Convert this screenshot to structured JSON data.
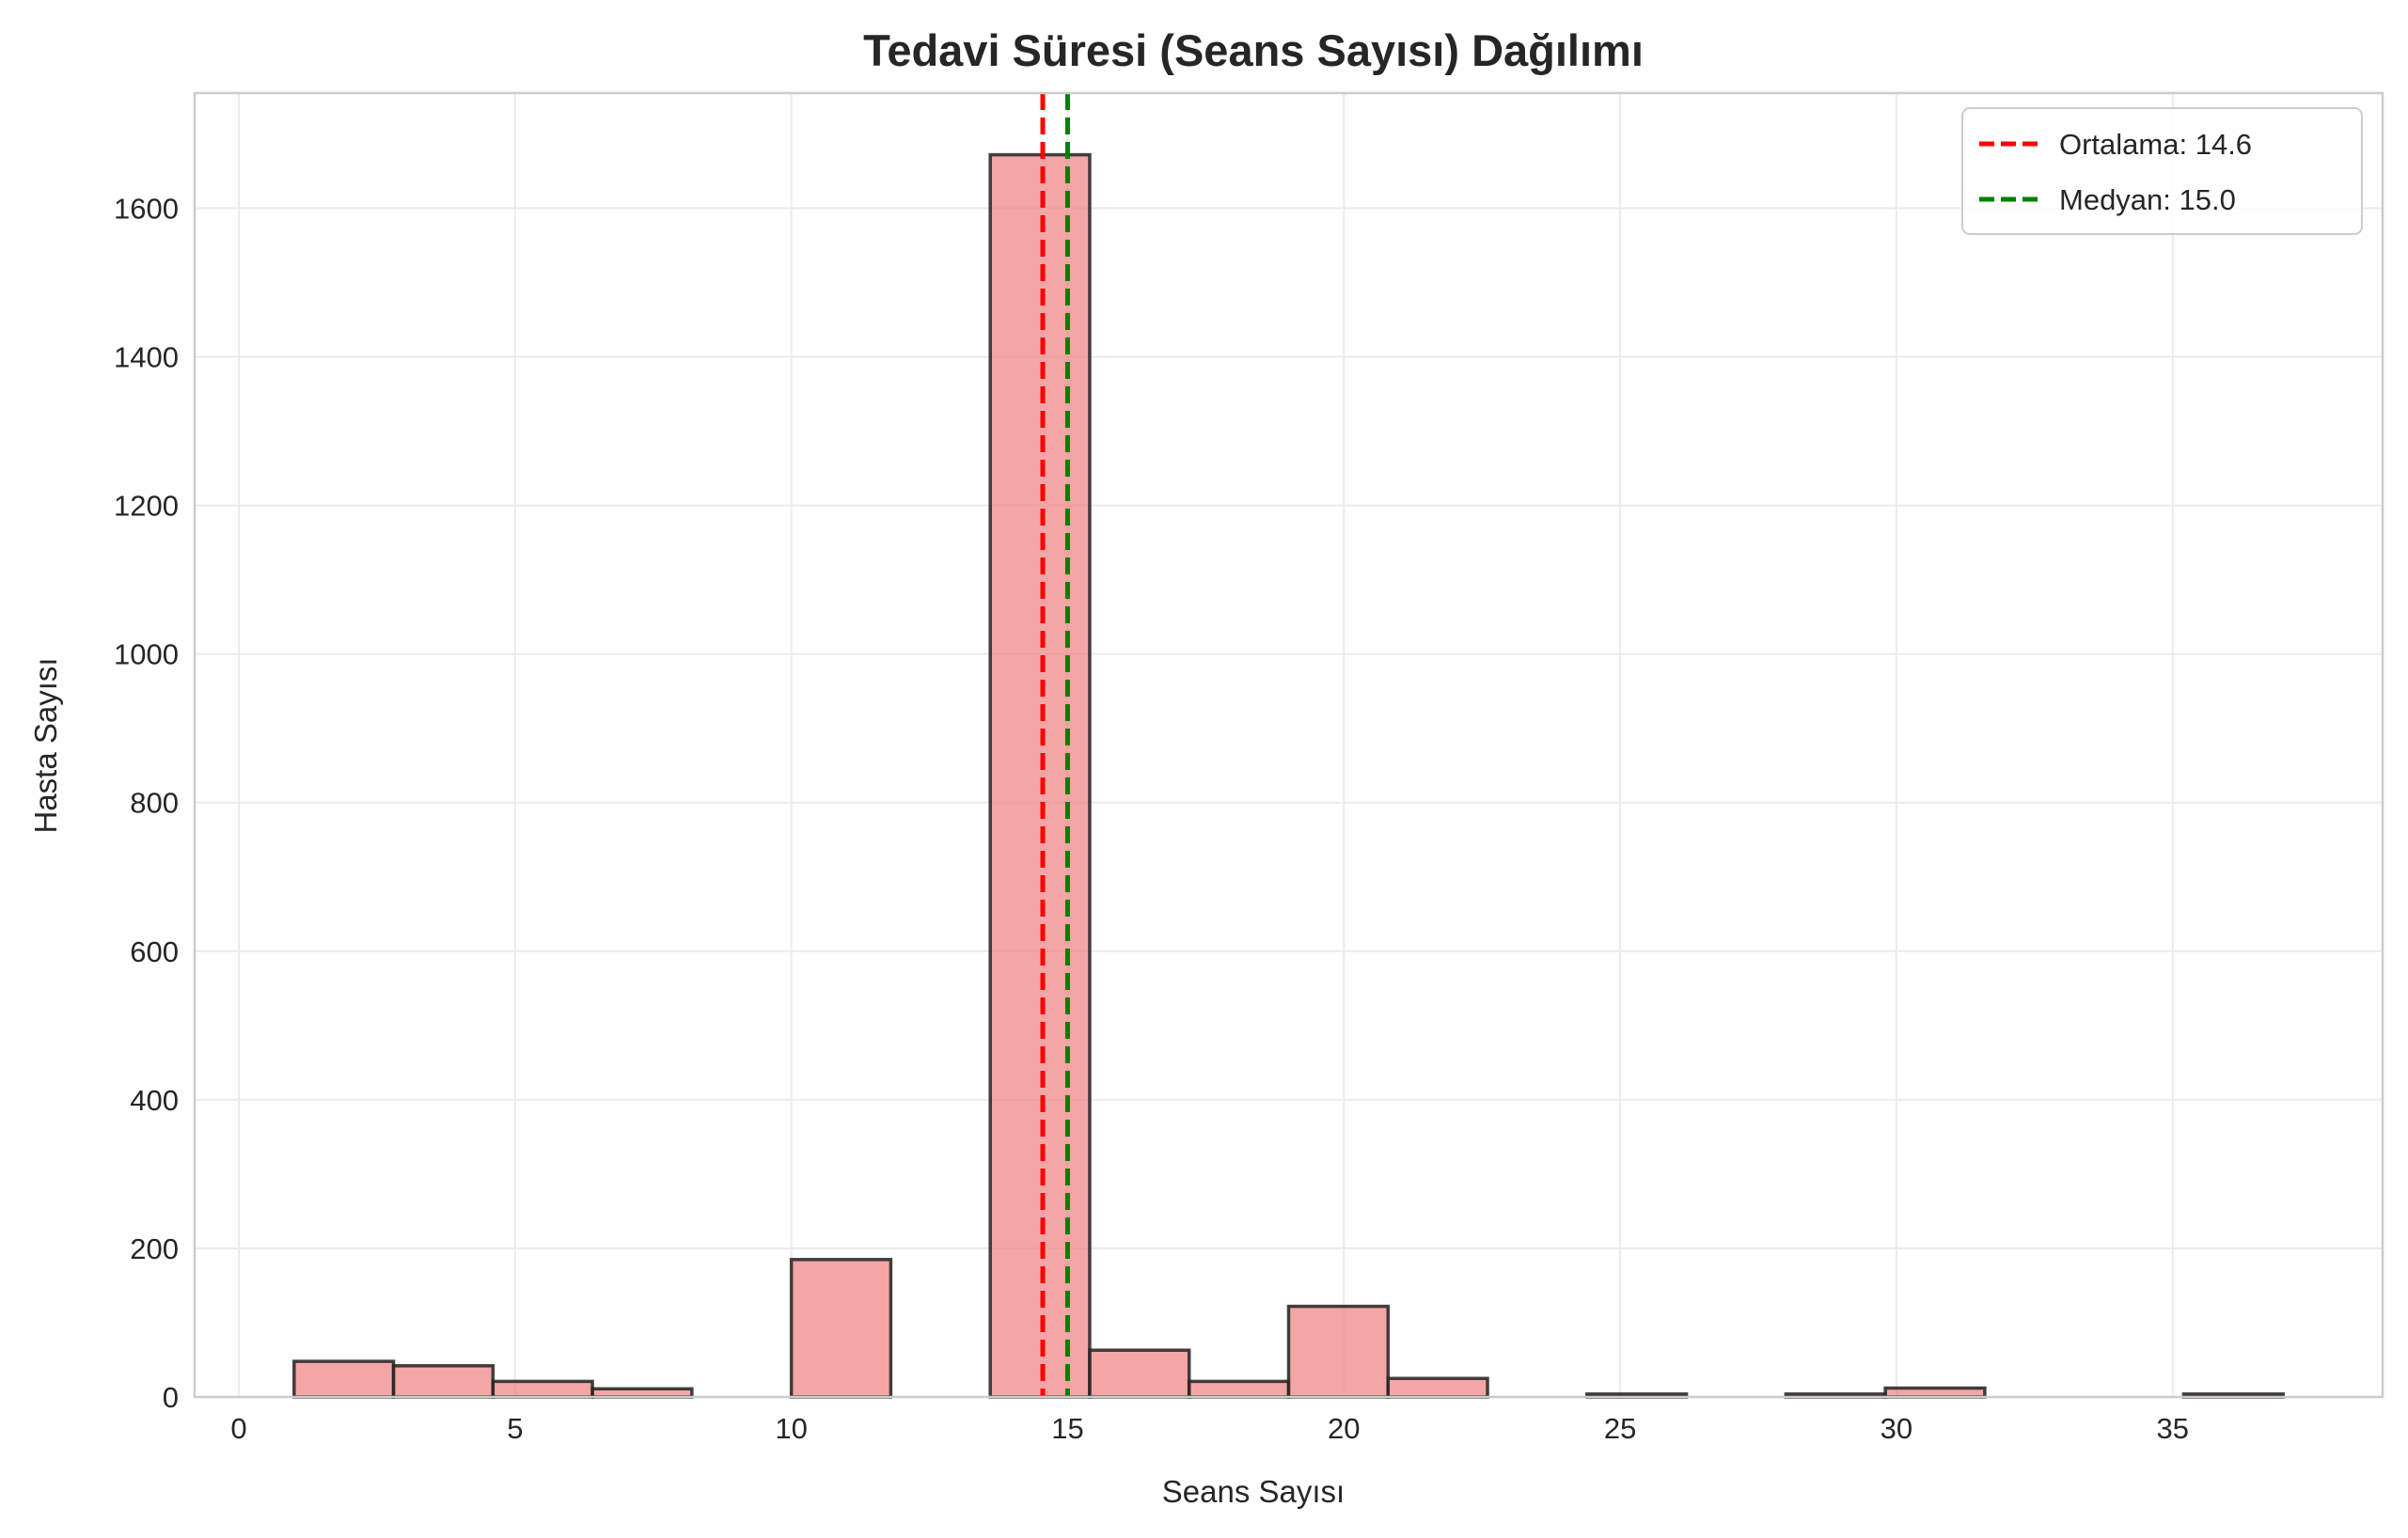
{
  "chart_data": {
    "type": "bar",
    "title": "Tedavi Süresi (Seans Sayısı) Dağılımı",
    "xlabel": "Seans Sayısı",
    "ylabel": "Hasta Sayısı",
    "xlim": [
      -0.8,
      38.8
    ],
    "ylim": [
      0,
      1755
    ],
    "xticks": [
      0,
      5,
      10,
      15,
      20,
      25,
      30,
      35
    ],
    "yticks": [
      0,
      200,
      400,
      600,
      800,
      1000,
      1200,
      1400,
      1600
    ],
    "grid": true,
    "bar_color": "#f08080",
    "edge_color": "#222222",
    "bins": [
      {
        "x0": 1.0,
        "x1": 2.8,
        "value": 48
      },
      {
        "x0": 2.8,
        "x1": 4.6,
        "value": 42
      },
      {
        "x0": 4.6,
        "x1": 6.4,
        "value": 21
      },
      {
        "x0": 6.4,
        "x1": 8.2,
        "value": 11
      },
      {
        "x0": 8.2,
        "x1": 10.0,
        "value": 0
      },
      {
        "x0": 10.0,
        "x1": 11.8,
        "value": 185
      },
      {
        "x0": 11.8,
        "x1": 13.6,
        "value": 0
      },
      {
        "x0": 13.6,
        "x1": 15.4,
        "value": 1672
      },
      {
        "x0": 15.4,
        "x1": 17.2,
        "value": 63
      },
      {
        "x0": 17.2,
        "x1": 19.0,
        "value": 21
      },
      {
        "x0": 19.0,
        "x1": 20.8,
        "value": 122
      },
      {
        "x0": 20.8,
        "x1": 22.6,
        "value": 25
      },
      {
        "x0": 22.6,
        "x1": 24.4,
        "value": 0
      },
      {
        "x0": 24.4,
        "x1": 26.2,
        "value": 4
      },
      {
        "x0": 26.2,
        "x1": 28.0,
        "value": 0
      },
      {
        "x0": 28.0,
        "x1": 29.8,
        "value": 4
      },
      {
        "x0": 29.8,
        "x1": 31.6,
        "value": 12
      },
      {
        "x0": 31.6,
        "x1": 33.4,
        "value": 0
      },
      {
        "x0": 33.4,
        "x1": 35.2,
        "value": 0
      },
      {
        "x0": 35.2,
        "x1": 37.0,
        "value": 4
      }
    ],
    "reference_lines": [
      {
        "label": "Ortalama: 14.6",
        "x": 14.55,
        "color": "#ff0000"
      },
      {
        "label": "Medyan: 15.0",
        "x": 15.0,
        "color": "#008000"
      }
    ],
    "legend_position": "top-right"
  }
}
